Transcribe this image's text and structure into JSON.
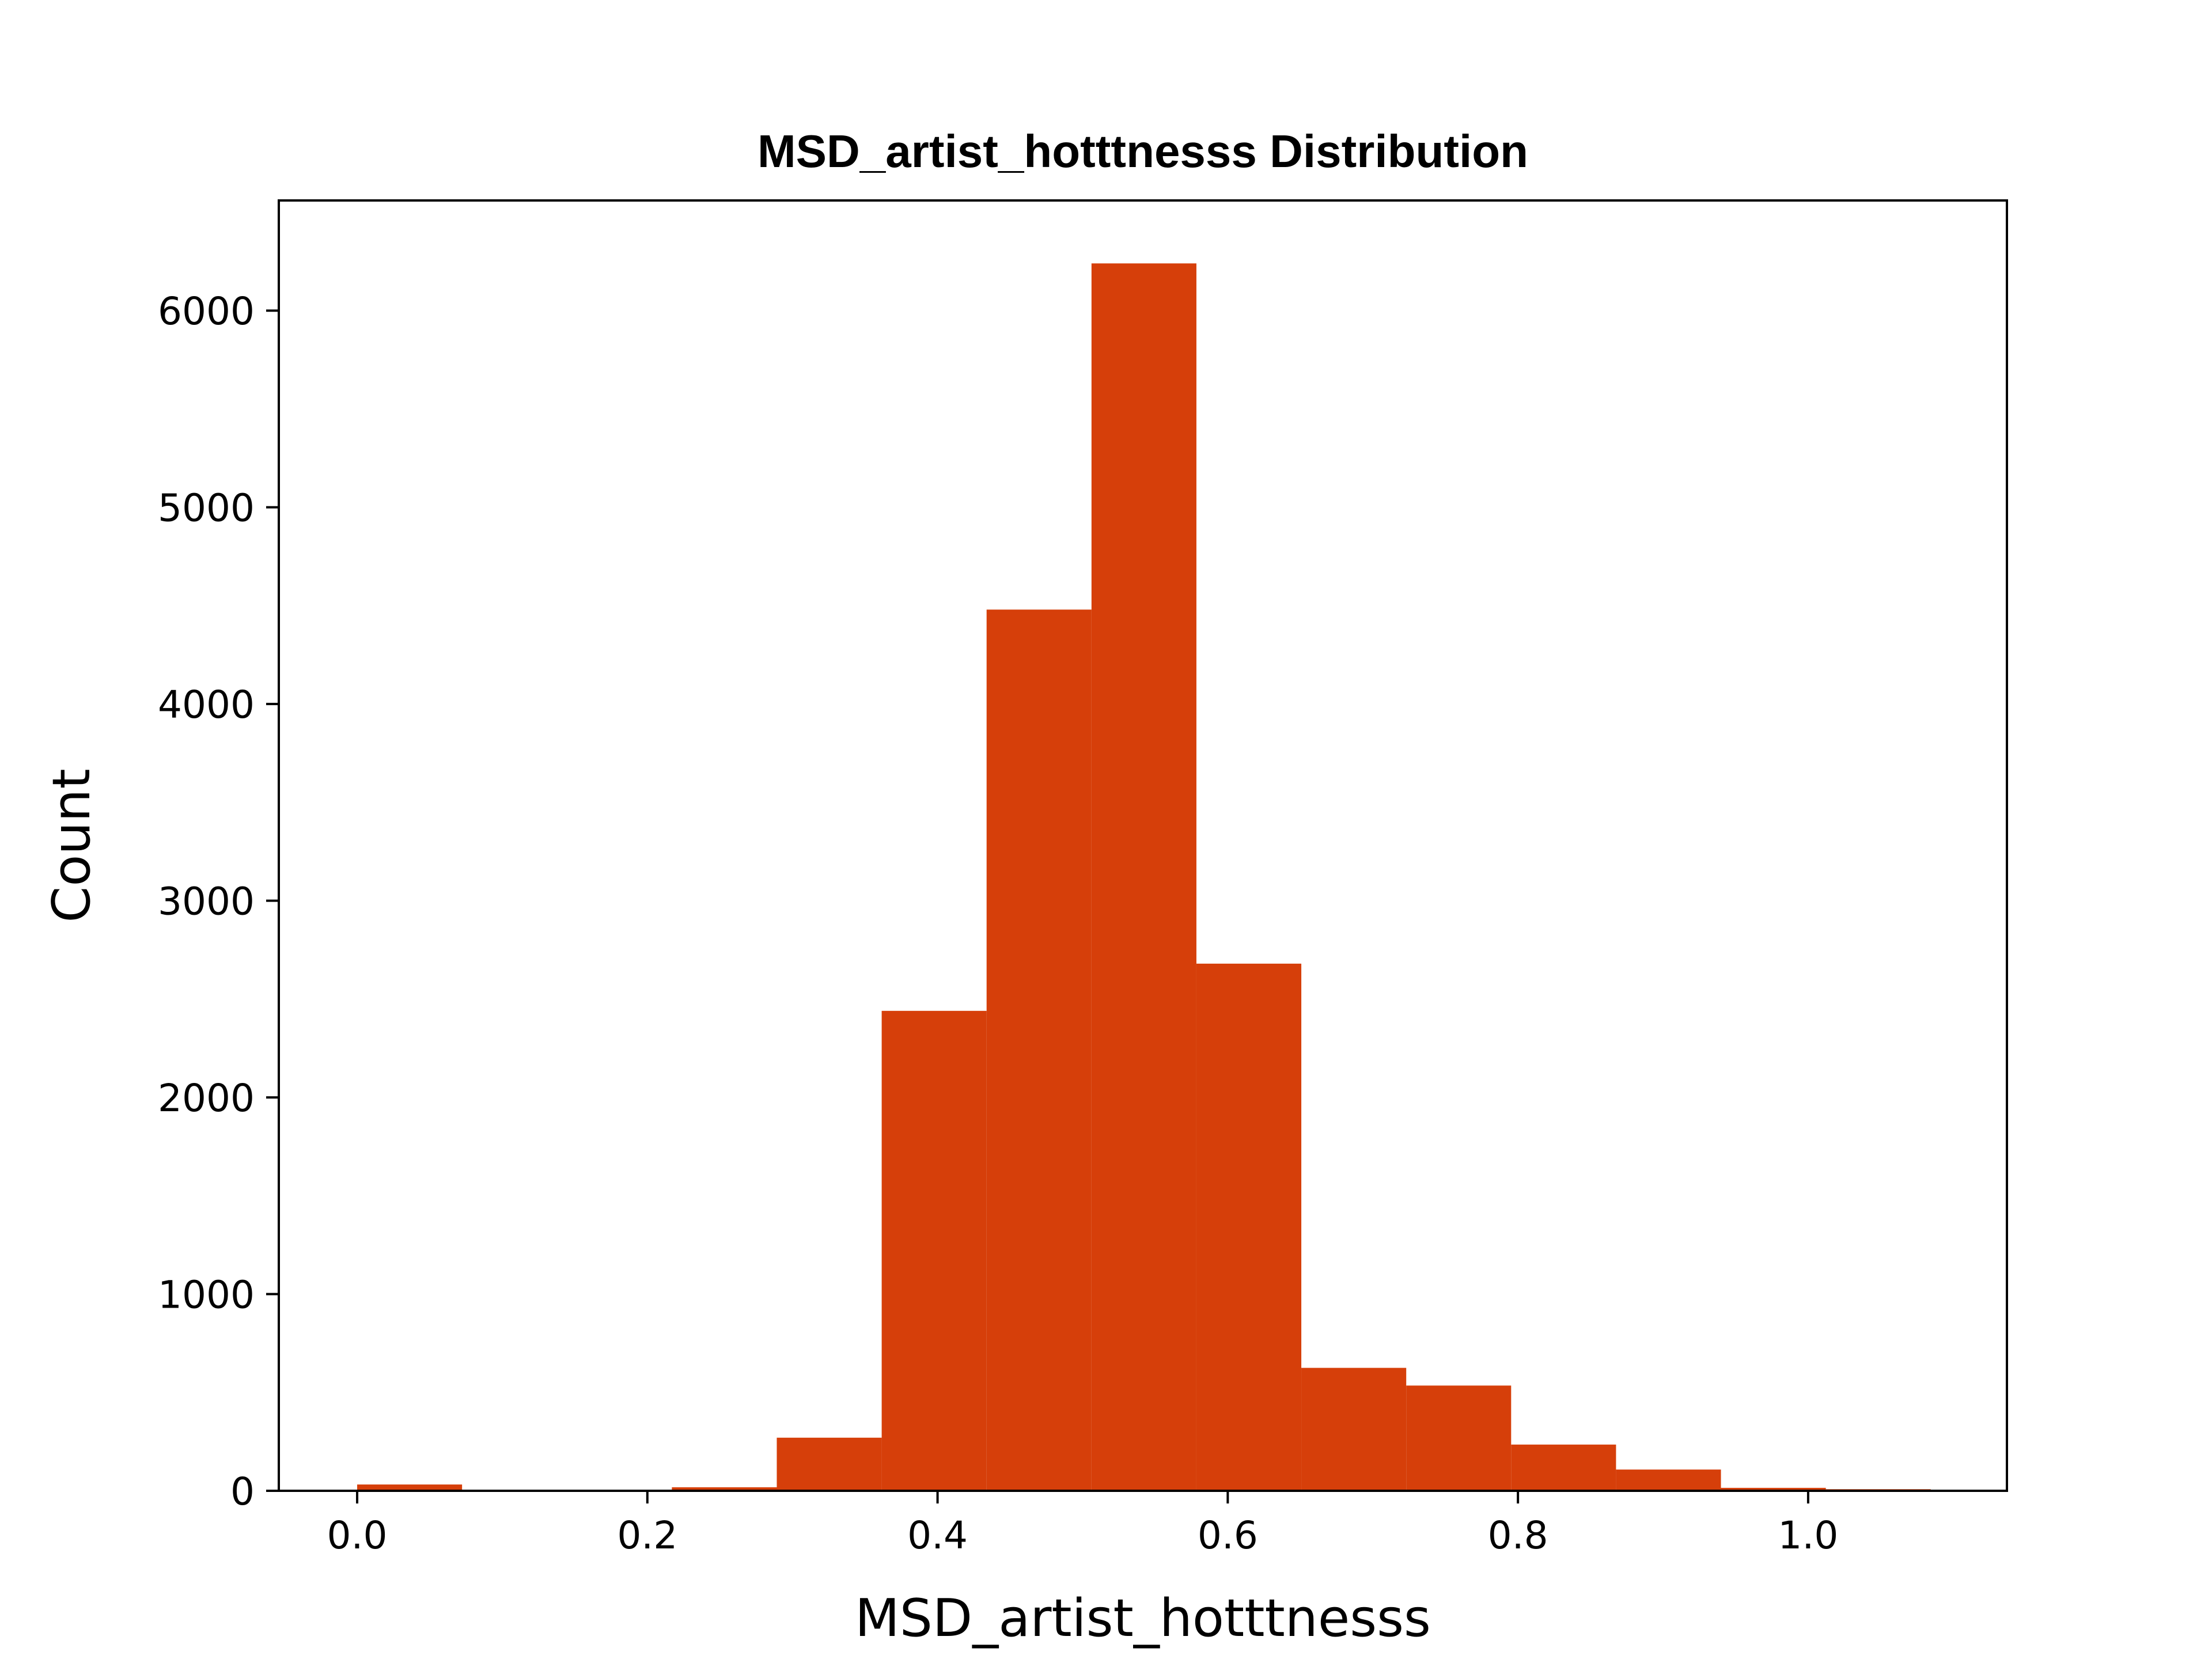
{
  "chart_data": {
    "type": "bar",
    "title": "MSD_artist_hotttnesss Distribution",
    "xlabel": "MSD_artist_hotttnesss",
    "ylabel": "Count",
    "xlim": [
      -0.054,
      1.137
    ],
    "ylim": [
      0,
      6560
    ],
    "xticks": [
      0.0,
      0.2,
      0.4,
      0.6,
      0.8,
      1.0
    ],
    "xtick_labels": [
      "0.0",
      "0.2",
      "0.4",
      "0.6",
      "0.8",
      "1.0"
    ],
    "yticks": [
      0,
      1000,
      2000,
      3000,
      4000,
      5000,
      6000
    ],
    "ytick_labels": [
      "0",
      "1000",
      "2000",
      "3000",
      "4000",
      "5000",
      "6000"
    ],
    "grid": false,
    "bar_color": "#d63f0a",
    "bin_edges": [
      0.0,
      0.0723,
      0.1446,
      0.2169,
      0.2892,
      0.3615,
      0.4338,
      0.5061,
      0.5784,
      0.6507,
      0.723,
      0.7953,
      0.8676,
      0.9399,
      1.0122,
      1.0845
    ],
    "values": [
      32,
      0,
      0,
      18,
      270,
      2440,
      4480,
      6240,
      2680,
      625,
      535,
      235,
      108,
      15,
      8
    ]
  }
}
